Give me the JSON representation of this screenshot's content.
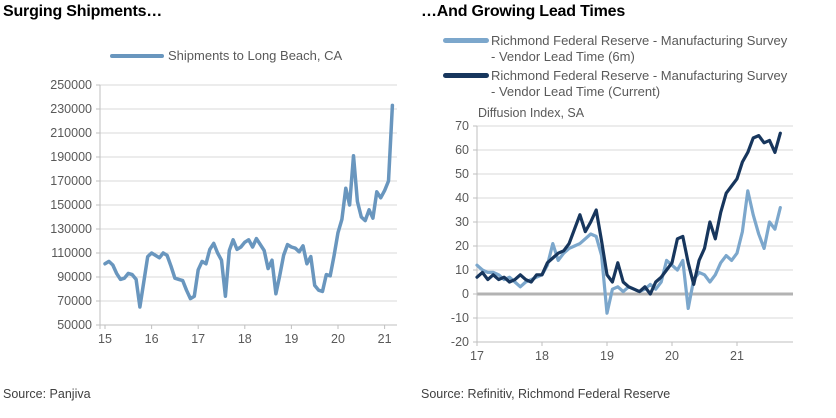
{
  "page": {
    "background": "#ffffff"
  },
  "colors": {
    "grid": "#d9d9d9",
    "axis": "#bfbfbf",
    "zero_line": "#b3b3b3",
    "light_blue": "#6996be",
    "light_blue_right": "#7ca7cc",
    "navy": "#17365d",
    "tick_text": "#595959",
    "title_text": "#000000",
    "source_text": "#404040"
  },
  "left": {
    "title": "Surging Shipments…",
    "legend": [
      {
        "label": "Shipments to Long Beach, CA",
        "color": "#6996be"
      }
    ],
    "source": "Source: Panjiva",
    "chart_data": {
      "type": "line",
      "title": "Shipments to Long Beach, CA",
      "xlabel": "",
      "ylabel": "",
      "ylim": [
        50000,
        250000
      ],
      "grid": true,
      "zero_line": false,
      "legend_position": "top-center",
      "x_ticks": [
        {
          "value": 15,
          "label": "15"
        },
        {
          "value": 16,
          "label": "16"
        },
        {
          "value": 17,
          "label": "17"
        },
        {
          "value": 18,
          "label": "18"
        },
        {
          "value": 19,
          "label": "19"
        },
        {
          "value": 20,
          "label": "20"
        },
        {
          "value": 21,
          "label": "21"
        }
      ],
      "y_ticks": [
        {
          "value": 250000,
          "label": "250000"
        },
        {
          "value": 230000,
          "label": "230000"
        },
        {
          "value": 210000,
          "label": "210000"
        },
        {
          "value": 190000,
          "label": "190000"
        },
        {
          "value": 170000,
          "label": "170000"
        },
        {
          "value": 150000,
          "label": "150000"
        },
        {
          "value": 130000,
          "label": "130000"
        },
        {
          "value": 110000,
          "label": "110000"
        },
        {
          "value": 90000,
          "label": "90000"
        },
        {
          "value": 70000,
          "label": "70000"
        },
        {
          "value": 50000,
          "label": "50000"
        }
      ],
      "frequency": "monthly",
      "series": [
        {
          "name": "shipments-long-beach",
          "legend": "Shipments to Long Beach, CA",
          "color": "#6996be",
          "stroke_width": 3.5,
          "x_start": 15.0,
          "x_step": 0.0833333,
          "values": [
            101000,
            103000,
            100000,
            93000,
            88000,
            89000,
            93000,
            92000,
            88000,
            65000,
            86000,
            107000,
            110000,
            108000,
            106000,
            110000,
            108000,
            99000,
            89000,
            88000,
            87000,
            79000,
            72000,
            74000,
            96000,
            103000,
            101000,
            113000,
            118000,
            110000,
            104000,
            74000,
            112000,
            121000,
            113000,
            115000,
            119000,
            121000,
            115000,
            122000,
            117000,
            112000,
            97000,
            104000,
            76000,
            91000,
            108000,
            117000,
            115000,
            114000,
            111000,
            116000,
            101000,
            107000,
            83000,
            79000,
            78000,
            92000,
            91000,
            108000,
            127000,
            138000,
            164000,
            150000,
            191000,
            153000,
            140000,
            137000,
            146000,
            139000,
            161000,
            156000,
            162000,
            170000,
            233000
          ]
        }
      ]
    }
  },
  "right": {
    "title": "…And Growing Lead Times",
    "axis_note": "Diffusion Index, SA",
    "legend": [
      {
        "lines": [
          "Richmond Federal Reserve - Manufacturing Survey",
          "- Vendor Lead Time (6m)"
        ],
        "color": "#7ca7cc"
      },
      {
        "lines": [
          "Richmond Federal Reserve - Manufacturing Survey",
          "- Vendor Lead Time (Current)"
        ],
        "color": "#17365d"
      }
    ],
    "source": "Source: Refinitiv, Richmond Federal Reserve",
    "chart_data": {
      "type": "line",
      "title": "Richmond Fed Manufacturing Survey - Vendor Lead Time",
      "xlabel": "",
      "ylabel": "Diffusion Index, SA",
      "ylim": [
        -20,
        70
      ],
      "grid": true,
      "zero_line": true,
      "legend_position": "top-left",
      "x_ticks": [
        {
          "value": 17,
          "label": "17"
        },
        {
          "value": 18,
          "label": "18"
        },
        {
          "value": 19,
          "label": "19"
        },
        {
          "value": 20,
          "label": "20"
        },
        {
          "value": 21,
          "label": "21"
        }
      ],
      "y_ticks": [
        {
          "value": 70,
          "label": "70"
        },
        {
          "value": 60,
          "label": "60"
        },
        {
          "value": 50,
          "label": "50"
        },
        {
          "value": 40,
          "label": "40"
        },
        {
          "value": 30,
          "label": "30"
        },
        {
          "value": 20,
          "label": "20"
        },
        {
          "value": 10,
          "label": "10"
        },
        {
          "value": 0,
          "label": "0"
        },
        {
          "value": -10,
          "label": "-10"
        },
        {
          "value": -20,
          "label": "-20"
        }
      ],
      "frequency": "monthly",
      "series": [
        {
          "name": "vendor-lead-time-6m",
          "legend": "Richmond Federal Reserve - Manufacturing Survey - Vendor Lead Time (6m)",
          "color": "#7ca7cc",
          "stroke_width": 3.2,
          "x_start": 17.0,
          "x_step": 0.0833333,
          "values": [
            12,
            10,
            9,
            9,
            8,
            6,
            7,
            5,
            3,
            5,
            6,
            7,
            8,
            12,
            21,
            14,
            17,
            19,
            20,
            21,
            23,
            25,
            24,
            16,
            -8,
            2,
            3,
            1,
            3,
            2,
            1,
            2,
            4,
            2,
            5,
            14,
            12,
            10,
            14,
            -6,
            6,
            9,
            8,
            5,
            8,
            13,
            16,
            14,
            17,
            26,
            43,
            33,
            25,
            19,
            30,
            27,
            36
          ]
        },
        {
          "name": "vendor-lead-time-current",
          "legend": "Richmond Federal Reserve - Manufacturing Survey - Vendor Lead Time (Current)",
          "color": "#17365d",
          "stroke_width": 3.2,
          "x_start": 17.0,
          "x_step": 0.0833333,
          "values": [
            7,
            9,
            6,
            8,
            6,
            7,
            5,
            6,
            8,
            6,
            5,
            8,
            8,
            13,
            15,
            17,
            18,
            21,
            27,
            33,
            26,
            30,
            35,
            22,
            8,
            5,
            13,
            5,
            3,
            2,
            1,
            3,
            0,
            5,
            7,
            10,
            13,
            23,
            24,
            13,
            4,
            14,
            19,
            30,
            23,
            34,
            42,
            45,
            48,
            55,
            59,
            65,
            66,
            63,
            64,
            59,
            67
          ]
        }
      ]
    }
  }
}
